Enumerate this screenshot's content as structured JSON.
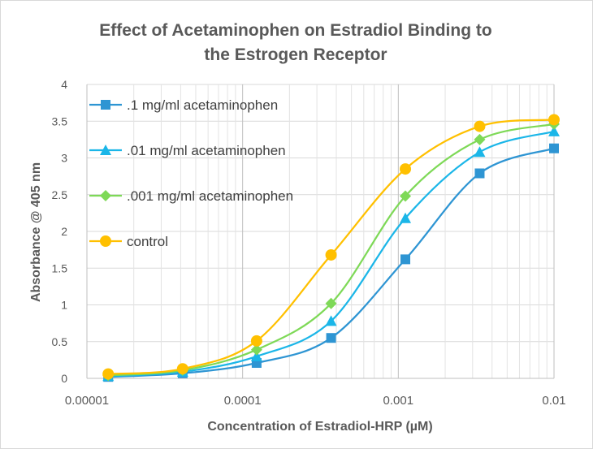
{
  "chart_data": {
    "type": "line",
    "title_lines": [
      "Effect of Acetaminophen on Estradiol Binding to",
      "the Estrogen Receptor"
    ],
    "xlabel": "Concentration of Estradiol-HRP (µM)",
    "ylabel": "Absorbance @ 405 nm",
    "xscale": "log",
    "xlim": [
      1e-05,
      0.01
    ],
    "ylim": [
      0,
      4
    ],
    "x_ticks": [
      1e-05,
      0.0001,
      0.001,
      0.01
    ],
    "x_tick_labels": [
      "0.00001",
      "0.0001",
      "0.001",
      "0.01"
    ],
    "y_ticks": [
      0,
      0.5,
      1,
      1.5,
      2,
      2.5,
      3,
      3.5,
      4
    ],
    "y_tick_labels": [
      "0",
      "0.5",
      "1",
      "1.5",
      "2",
      "2.5",
      "3",
      "3.5",
      "4"
    ],
    "grid": true,
    "legend_position": "top-left",
    "x": [
      1.37e-05,
      4.12e-05,
      0.000123,
      0.00037,
      0.00111,
      0.00333,
      0.01
    ],
    "series": [
      {
        "name": ".1 mg/ml acetaminophen",
        "marker": "square",
        "color": "#2E95D3",
        "values": [
          0.02,
          0.07,
          0.21,
          0.55,
          1.62,
          2.79,
          3.13
        ]
      },
      {
        "name": ".01 mg/ml acetaminophen",
        "marker": "triangle",
        "color": "#1BB6E8",
        "values": [
          0.03,
          0.09,
          0.3,
          0.78,
          2.18,
          3.08,
          3.36
        ]
      },
      {
        "name": ".001 mg/ml acetaminophen",
        "marker": "diamond",
        "color": "#7ED957",
        "values": [
          0.04,
          0.11,
          0.39,
          1.02,
          2.48,
          3.25,
          3.46
        ]
      },
      {
        "name": "control",
        "marker": "circle",
        "color": "#FFC000",
        "values": [
          0.06,
          0.13,
          0.51,
          1.68,
          2.85,
          3.43,
          3.52
        ]
      }
    ]
  }
}
